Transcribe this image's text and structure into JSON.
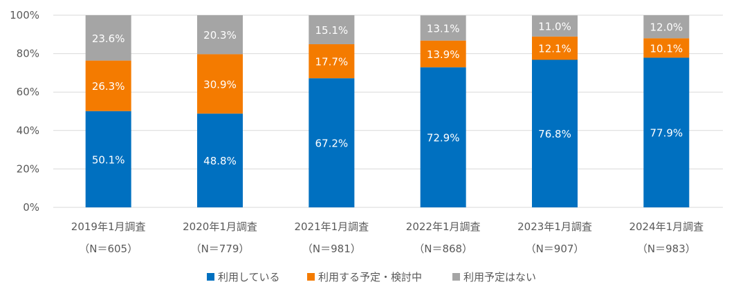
{
  "chart_data": {
    "type": "bar",
    "stacked": true,
    "title": "",
    "xlabel": "",
    "ylabel": "",
    "ylim": [
      0,
      100
    ],
    "yticks": [
      "0%",
      "20%",
      "40%",
      "60%",
      "80%",
      "100%"
    ],
    "grid": true,
    "legend_position": "bottom",
    "categories": [
      "2019年1月調査",
      "2020年1月調査",
      "2021年1月調査",
      "2022年1月調査",
      "2023年1月調査",
      "2024年1月調査"
    ],
    "category_sub": [
      "（N＝605）",
      "（N＝779）",
      "（N＝981）",
      "（N＝868）",
      "（N＝907）",
      "（N＝983）"
    ],
    "series": [
      {
        "name": "利用している",
        "color": "#0070C0",
        "label_color": "#FFFFFF",
        "values": [
          50.1,
          48.8,
          67.2,
          72.9,
          76.8,
          77.9
        ],
        "labels": [
          "50.1%",
          "48.8%",
          "67.2%",
          "72.9%",
          "76.8%",
          "77.9%"
        ]
      },
      {
        "name": "利用する予定・検討中",
        "color": "#F47B00",
        "label_color": "#FFFFFF",
        "values": [
          26.3,
          30.9,
          17.7,
          13.9,
          12.1,
          10.1
        ],
        "labels": [
          "26.3%",
          "30.9%",
          "17.7%",
          "13.9%",
          "12.1%",
          "10.1%"
        ]
      },
      {
        "name": "利用予定はない",
        "color": "#A5A5A5",
        "label_color": "#FFFFFF",
        "values": [
          23.6,
          20.3,
          15.1,
          13.1,
          11.0,
          12.0
        ],
        "labels": [
          "23.6%",
          "20.3%",
          "15.1%",
          "13.1%",
          "11.0%",
          "12.0%"
        ]
      }
    ]
  }
}
